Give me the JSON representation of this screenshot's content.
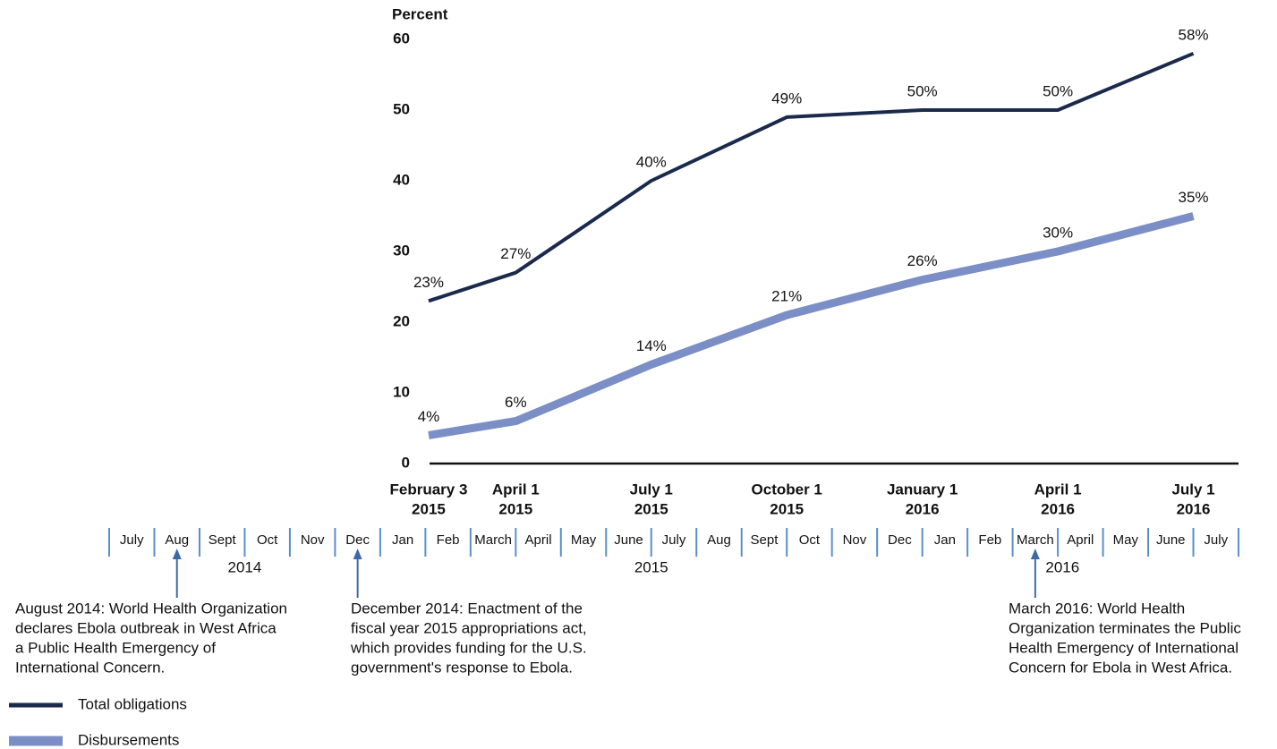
{
  "chart_data": {
    "type": "line",
    "y_axis_label": "Percent",
    "x": [
      "2015-02-03",
      "2015-04-01",
      "2015-07-01",
      "2015-10-01",
      "2016-01-01",
      "2016-04-01",
      "2016-07-01"
    ],
    "x_labels": [
      [
        "February 3",
        "2015"
      ],
      [
        "April 1",
        "2015"
      ],
      [
        "July 1",
        "2015"
      ],
      [
        "October 1",
        "2015"
      ],
      [
        "January 1",
        "2016"
      ],
      [
        "April 1",
        "2016"
      ],
      [
        "July 1",
        "2016"
      ]
    ],
    "xlim": [
      "2014-07-01",
      "2016-08-01"
    ],
    "ylim": [
      0,
      60
    ],
    "yticks": [
      0,
      10,
      20,
      30,
      40,
      50,
      60
    ],
    "series": [
      {
        "name": "Total obligations",
        "color": "#1b2a4c",
        "values": [
          23,
          27,
          40,
          49,
          50,
          50,
          58
        ],
        "value_labels": [
          "23%",
          "27%",
          "40%",
          "49%",
          "50%",
          "50%",
          "58%"
        ]
      },
      {
        "name": "Disbursements",
        "color": "#7b8fc6",
        "values": [
          4,
          6,
          14,
          21,
          26,
          30,
          35
        ],
        "value_labels": [
          "4%",
          "6%",
          "14%",
          "21%",
          "26%",
          "30%",
          "35%"
        ]
      }
    ],
    "timeline": {
      "months": [
        "July",
        "Aug",
        "Sept",
        "Oct",
        "Nov",
        "Dec",
        "Jan",
        "Feb",
        "March",
        "April",
        "May",
        "June",
        "July",
        "Aug",
        "Sept",
        "Oct",
        "Nov",
        "Dec",
        "Jan",
        "Feb",
        "March",
        "April",
        "May",
        "June",
        "July"
      ],
      "years": [
        "2014",
        "2015",
        "2016"
      ]
    },
    "annotations": [
      [
        "August 2014: World Health Organization",
        "declares Ebola outbreak in West Africa",
        "a Public Health Emergency of",
        "International Concern."
      ],
      [
        "December 2014: Enactment of the",
        "fiscal year 2015 appropriations act,",
        "which provides funding for the U.S.",
        "government's response to Ebola."
      ],
      [
        "March 2016: World Health",
        "Organization terminates the Public",
        "Health Emergency of International",
        "Concern for Ebola in West Africa."
      ]
    ],
    "legend": "bottom-left"
  }
}
